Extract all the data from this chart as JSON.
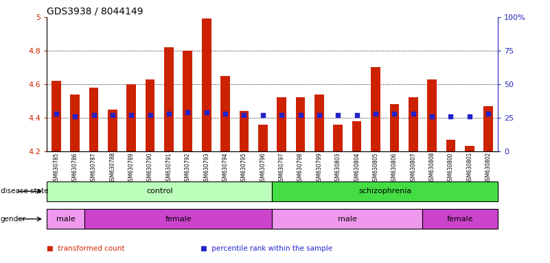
{
  "title": "GDS3938 / 8044149",
  "samples": [
    "GSM630785",
    "GSM630786",
    "GSM630787",
    "GSM630788",
    "GSM630789",
    "GSM630790",
    "GSM630791",
    "GSM630792",
    "GSM630793",
    "GSM630794",
    "GSM630795",
    "GSM630796",
    "GSM630797",
    "GSM630798",
    "GSM630799",
    "GSM630803",
    "GSM630804",
    "GSM630805",
    "GSM630806",
    "GSM630807",
    "GSM630808",
    "GSM630800",
    "GSM630801",
    "GSM630802"
  ],
  "bar_values": [
    4.62,
    4.54,
    4.58,
    4.45,
    4.6,
    4.63,
    4.82,
    4.8,
    4.99,
    4.65,
    4.44,
    4.36,
    4.52,
    4.52,
    4.54,
    4.36,
    4.38,
    4.7,
    4.48,
    4.52,
    4.63,
    4.27,
    4.23,
    4.47
  ],
  "percentile_values": [
    28,
    26,
    27,
    27,
    27,
    27,
    28,
    29,
    29,
    28,
    27,
    27,
    27,
    27,
    27,
    27,
    27,
    28,
    28,
    28,
    26,
    26,
    26,
    28
  ],
  "bar_color": "#cc2200",
  "percentile_color": "#2222cc",
  "ymin": 4.2,
  "ymax": 5.0,
  "yticks_left": [
    4.2,
    4.4,
    4.6,
    4.8,
    5.0
  ],
  "ytick_labels_left": [
    "4.2",
    "4.4",
    "4.6",
    "4.8",
    "5"
  ],
  "right_yticks": [
    0,
    25,
    50,
    75,
    100
  ],
  "right_yticklabels": [
    "0",
    "25",
    "50",
    "75",
    "100%"
  ],
  "grid_values": [
    4.4,
    4.6,
    4.8
  ],
  "disease_state": [
    {
      "label": "control",
      "start": 0,
      "end": 12,
      "color": "#bbffbb"
    },
    {
      "label": "schizophrenia",
      "start": 12,
      "end": 24,
      "color": "#44dd44"
    }
  ],
  "gender": [
    {
      "label": "male",
      "start": 0,
      "end": 2,
      "color": "#ee99ee"
    },
    {
      "label": "female",
      "start": 2,
      "end": 12,
      "color": "#cc44cc"
    },
    {
      "label": "male",
      "start": 12,
      "end": 20,
      "color": "#ee99ee"
    },
    {
      "label": "female",
      "start": 20,
      "end": 24,
      "color": "#cc44cc"
    }
  ],
  "legend": [
    {
      "label": "transformed count",
      "color": "#cc2200"
    },
    {
      "label": "percentile rank within the sample",
      "color": "#2222cc"
    }
  ],
  "title_fontsize": 10,
  "tick_fontsize": 8,
  "bar_width": 0.5,
  "axis_label_color_left": "#cc2200",
  "axis_label_color_right": "#2222bb",
  "xtick_fontsize": 5.5
}
